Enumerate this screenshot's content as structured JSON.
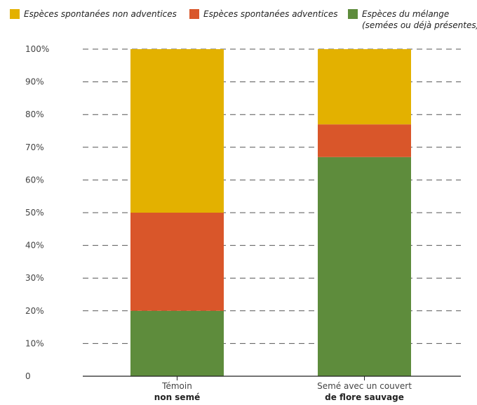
{
  "chart_data": {
    "type": "bar",
    "stacked": true,
    "categories": [
      {
        "line1": "Témoin",
        "line2": "non semé"
      },
      {
        "line1": "Semé avec un couvert",
        "line2": "de flore sauvage"
      }
    ],
    "series": [
      {
        "name": "Espèces du mélange",
        "name2": "(semées ou déjà présentes)",
        "color": "#5e8c3c",
        "values": [
          20,
          67
        ]
      },
      {
        "name": "Espèces spontanées adventices",
        "color": "#d9562a",
        "values": [
          30,
          10
        ]
      },
      {
        "name": "Espèces spontanées non adventices",
        "color": "#e3b100",
        "values": [
          50,
          23
        ]
      }
    ],
    "ylim": [
      0,
      100
    ],
    "yticks": [
      "0",
      "10%",
      "20%",
      "30%",
      "40%",
      "50%",
      "60%",
      "70%",
      "80%",
      "90%",
      "100%"
    ],
    "grid": true,
    "legend_position": "top"
  }
}
